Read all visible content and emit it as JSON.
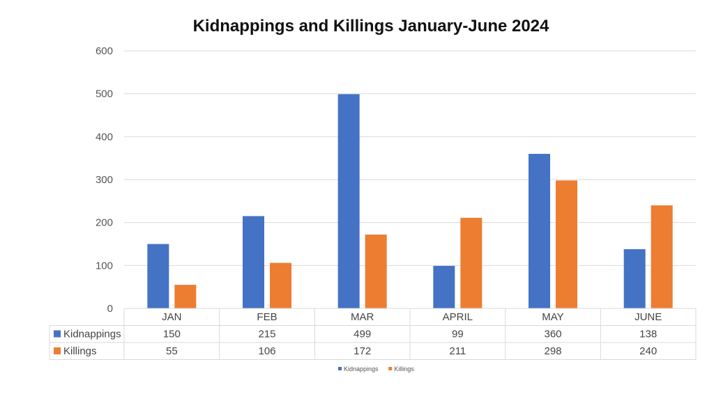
{
  "chart_data": {
    "type": "bar",
    "title": "Kidnappings and Killings January-June 2024",
    "categories": [
      "JAN",
      "FEB",
      "MAR",
      "APRIL",
      "MAY",
      "JUNE"
    ],
    "series": [
      {
        "name": "Kidnappings",
        "values": [
          150,
          215,
          499,
          99,
          360,
          138
        ],
        "color": "#4472C4"
      },
      {
        "name": "Killings",
        "values": [
          55,
          106,
          172,
          211,
          298,
          240
        ],
        "color": "#ED7D31"
      }
    ],
    "ylim": [
      0,
      600
    ],
    "yticks": [
      0,
      100,
      200,
      300,
      400,
      500,
      600
    ],
    "xlabel": "",
    "ylabel": "",
    "grid": true,
    "data_table": true,
    "legend": "bottom-center"
  }
}
